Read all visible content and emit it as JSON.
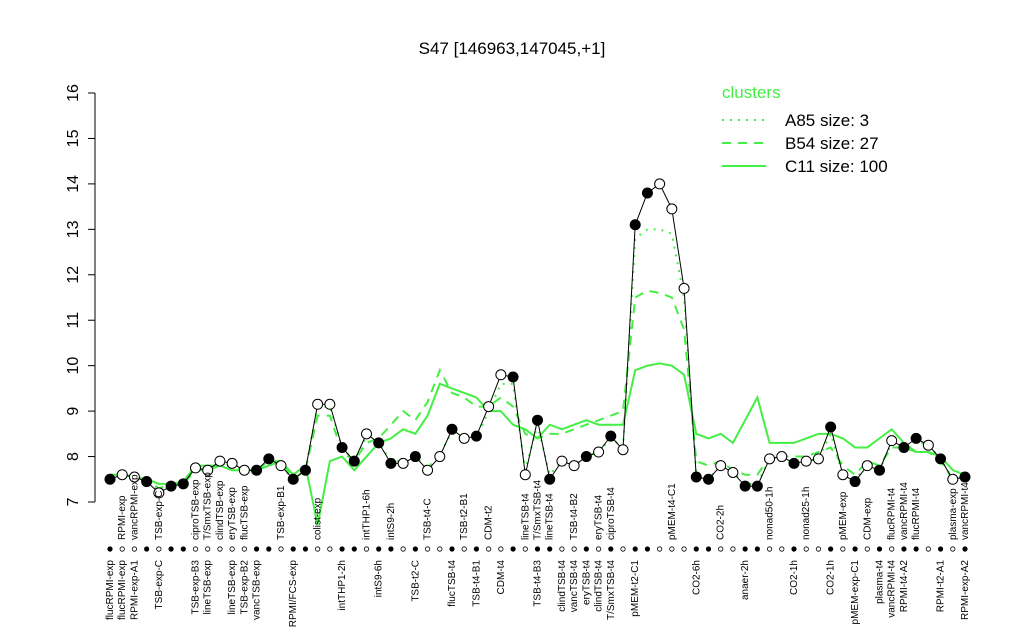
{
  "chart_data": {
    "type": "line",
    "title": "S47 [146963,147045,+1]",
    "categories": [
      "flucRPMI-exp",
      "flucRPMI-exp",
      "RPMI-exp-A1",
      null,
      "TSB-exp-C",
      null,
      null,
      "TSB-exp-B3",
      "lineTSB-exp",
      null,
      "lineTSB-exp",
      "TSB-exp-B2",
      "vancTSB-exp",
      null,
      null,
      "RPMI/FCS-exp",
      null,
      null,
      null,
      "intTHP1-2h",
      null,
      null,
      "intS9-6h",
      null,
      null,
      "TSB-t2-C",
      null,
      null,
      "flucTSB-t4",
      null,
      "TSB-t4-B1",
      null,
      "CDM-t4",
      null,
      null,
      "TSB-t4-B3",
      null,
      "clindTSB-t4",
      "vancTSB-t4",
      "eryTSB-t4",
      "clindTSB-t4",
      "T/SmxTSB-t4",
      null,
      "pMEM-t2-C1",
      null,
      null,
      null,
      null,
      "CO2-6h",
      null,
      null,
      null,
      "anaer-2h",
      null,
      null,
      null,
      "CO2-1h",
      null,
      null,
      "CO2-1h",
      null,
      "pMEM-exp-C1",
      null,
      "plasma-t4",
      "vancRPMI-t4",
      "RPMI-t4-A2",
      null,
      null,
      "RPMI-t2-A1",
      null,
      "RPMI-exp-A2"
    ],
    "point_labels": [
      null,
      "RPMI-exp",
      "vancRPMI-exp",
      null,
      "TSB-exp-C",
      null,
      null,
      "ciproTSB-exp",
      "T/SmxTSB-exp",
      "clindTSB-exp",
      "eryTSB-exp",
      "flucTSB-exp",
      null,
      null,
      "TSB-exp-B1",
      null,
      null,
      "colist-exp",
      null,
      null,
      null,
      "intTHP1-6h",
      null,
      "intS9-2h",
      null,
      null,
      "TSB-t4-C",
      null,
      null,
      "TSB-t2-B1",
      null,
      "CDM-t2",
      null,
      null,
      "lineTSB-t4",
      "T/SmxTSB-t4",
      "lineTSB-t4",
      null,
      "TSB-t4-B2",
      null,
      "eryTSB-t4",
      "ciproTSB-t4",
      null,
      null,
      null,
      null,
      "pMEM-t4-C1",
      null,
      null,
      null,
      "CO2-2h",
      null,
      null,
      null,
      "nonad50-1h",
      null,
      null,
      "nonad25-1h",
      null,
      null,
      "pMEM-exp",
      null,
      "CDM-exp",
      null,
      "flucRPMI-t4",
      "vancRPMI-t4",
      "flucRPMI-t4",
      null,
      null,
      "plasma-exp",
      "vancRPMI-t4"
    ],
    "values": [
      7.5,
      7.6,
      7.55,
      7.45,
      7.2,
      7.35,
      7.4,
      7.75,
      7.7,
      7.9,
      7.85,
      7.7,
      7.7,
      7.95,
      7.8,
      7.5,
      7.7,
      9.15,
      9.15,
      8.2,
      7.9,
      8.5,
      8.3,
      7.85,
      7.85,
      8.0,
      7.7,
      8.0,
      8.6,
      8.4,
      8.45,
      9.1,
      9.8,
      9.75,
      7.6,
      8.8,
      7.5,
      7.9,
      7.8,
      8.0,
      8.1,
      8.45,
      8.15,
      13.1,
      13.8,
      14.0,
      13.45,
      11.7,
      7.55,
      7.5,
      7.8,
      7.65,
      7.35,
      7.35,
      7.95,
      8.0,
      7.85,
      7.9,
      7.95,
      8.65,
      7.6,
      7.45,
      7.8,
      7.7,
      8.35,
      8.2,
      8.4,
      8.25,
      7.95,
      7.5,
      7.55
    ],
    "marker_filled": [
      true,
      false,
      false,
      true,
      false,
      true,
      true,
      false,
      false,
      false,
      false,
      false,
      true,
      true,
      false,
      true,
      true,
      false,
      false,
      true,
      true,
      false,
      true,
      true,
      false,
      true,
      false,
      false,
      true,
      false,
      true,
      false,
      false,
      true,
      false,
      true,
      true,
      false,
      false,
      true,
      false,
      true,
      false,
      true,
      true,
      false,
      false,
      false,
      true,
      true,
      false,
      false,
      true,
      true,
      false,
      false,
      true,
      false,
      false,
      true,
      false,
      true,
      false,
      true,
      false,
      true,
      true,
      false,
      true,
      false,
      true
    ],
    "color": "#000000",
    "legend_title": "clusters",
    "legend_position": "top-right",
    "series": [
      {
        "name": "A85 size: 3",
        "color": "#44ee44",
        "dash": "dotted",
        "values": [
          7.55,
          7.6,
          7.55,
          7.45,
          7.25,
          7.35,
          7.4,
          7.75,
          7.7,
          7.85,
          7.8,
          7.7,
          7.7,
          7.9,
          7.8,
          7.5,
          7.7,
          9.1,
          9.1,
          8.2,
          7.9,
          8.45,
          8.3,
          7.9,
          7.9,
          8.0,
          7.75,
          8.05,
          8.55,
          8.4,
          8.4,
          9.0,
          9.6,
          9.6,
          7.7,
          8.7,
          7.6,
          7.9,
          7.8,
          8.0,
          8.1,
          8.4,
          8.2,
          12.8,
          13.0,
          13.0,
          12.9,
          11.5,
          7.6,
          7.5,
          7.8,
          7.65,
          7.4,
          7.4,
          7.95,
          8.0,
          7.85,
          7.9,
          7.95,
          8.5,
          7.6,
          7.5,
          7.8,
          7.7,
          8.3,
          8.2,
          8.35,
          8.25,
          7.95,
          7.5,
          7.55
        ]
      },
      {
        "name": "B54 size: 27",
        "color": "#44ee44",
        "dash": "dashed",
        "values": [
          7.6,
          7.6,
          7.55,
          7.5,
          7.3,
          7.4,
          7.4,
          7.7,
          7.7,
          7.8,
          7.8,
          7.7,
          7.7,
          7.9,
          7.9,
          7.5,
          7.7,
          8.9,
          8.9,
          8.1,
          7.9,
          8.3,
          8.4,
          8.7,
          9.0,
          8.8,
          9.2,
          9.9,
          9.4,
          9.3,
          9.1,
          9.1,
          9.3,
          9.1,
          8.5,
          8.4,
          8.5,
          8.5,
          8.6,
          8.7,
          8.8,
          8.9,
          9.0,
          11.5,
          11.65,
          11.6,
          11.5,
          10.8,
          7.9,
          7.8,
          7.9,
          7.7,
          7.6,
          7.6,
          8.0,
          8.0,
          8.0,
          8.0,
          8.1,
          8.2,
          7.8,
          7.6,
          7.9,
          7.8,
          8.2,
          8.2,
          8.1,
          8.1,
          7.9,
          7.5,
          7.55
        ]
      },
      {
        "name": "C11 size: 100",
        "color": "#44ee44",
        "dash": "solid",
        "values": [
          7.6,
          7.6,
          7.55,
          7.5,
          7.4,
          7.4,
          7.45,
          7.8,
          7.8,
          7.8,
          7.7,
          7.7,
          7.7,
          7.8,
          7.9,
          7.6,
          7.8,
          6.5,
          7.9,
          8.0,
          7.7,
          8.0,
          8.3,
          8.4,
          8.6,
          8.5,
          8.9,
          9.6,
          9.5,
          9.4,
          9.3,
          9.0,
          9.0,
          8.7,
          8.6,
          8.4,
          8.7,
          8.6,
          8.7,
          8.8,
          8.7,
          8.7,
          8.7,
          9.9,
          10.0,
          10.05,
          10.0,
          9.8,
          8.5,
          8.4,
          8.5,
          8.3,
          8.8,
          9.3,
          8.3,
          8.3,
          8.3,
          8.4,
          8.5,
          8.5,
          8.4,
          8.2,
          8.2,
          8.4,
          8.6,
          8.3,
          8.1,
          8.1,
          8.0,
          7.7,
          7.6
        ]
      }
    ],
    "ylim": [
      7,
      16
    ],
    "yticks": [
      7,
      8,
      9,
      10,
      11,
      12,
      13,
      14,
      15,
      16
    ]
  }
}
